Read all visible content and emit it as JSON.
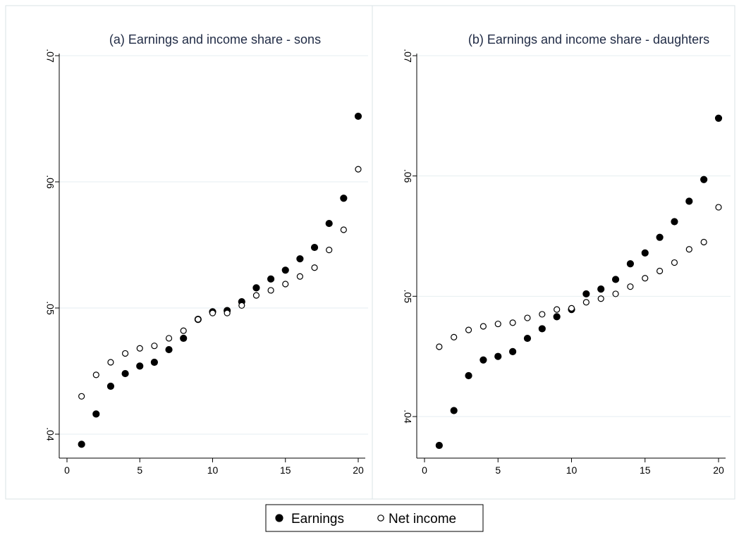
{
  "colors": {
    "title": "#1f2a44",
    "grid": "#e6eef0",
    "panel_border": "#d9e3e6",
    "earnings_fill": "#000000",
    "net_income_stroke": "#000000",
    "net_income_fill": "#ffffff"
  },
  "legend": {
    "position": "bottom-center",
    "items": [
      {
        "label": "Earnings",
        "marker": "filled-circle"
      },
      {
        "label": "Net income",
        "marker": "hollow-circle"
      }
    ]
  },
  "chart_data": [
    {
      "type": "scatter",
      "title": "(a) Earnings and income share - sons",
      "xlabel": "",
      "ylabel": "",
      "xlim": [
        0,
        20
      ],
      "ylim": [
        0.04,
        0.07
      ],
      "xticks": [
        0,
        5,
        10,
        15,
        20
      ],
      "xtick_labels": [
        "0",
        "5",
        "10",
        "15",
        "20"
      ],
      "yticks": [
        0.04,
        0.05,
        0.06,
        0.07
      ],
      "ytick_labels": [
        ".04",
        ".05",
        ".06",
        ".07"
      ],
      "grid": true,
      "series": [
        {
          "name": "Earnings",
          "marker": "filled",
          "x": [
            1,
            2,
            3,
            4,
            5,
            6,
            7,
            8,
            9,
            10,
            11,
            12,
            13,
            14,
            15,
            16,
            17,
            18,
            19,
            20
          ],
          "y": [
            0.0392,
            0.0416,
            0.0438,
            0.0448,
            0.0454,
            0.0457,
            0.0467,
            0.0476,
            0.0491,
            0.0497,
            0.0498,
            0.0505,
            0.0516,
            0.0523,
            0.053,
            0.0539,
            0.0548,
            0.0567,
            0.0587,
            0.0652
          ]
        },
        {
          "name": "Net income",
          "marker": "hollow",
          "x": [
            1,
            2,
            3,
            4,
            5,
            6,
            7,
            8,
            9,
            10,
            11,
            12,
            13,
            14,
            15,
            16,
            17,
            18,
            19,
            20
          ],
          "y": [
            0.043,
            0.0447,
            0.0457,
            0.0464,
            0.0468,
            0.047,
            0.0476,
            0.0482,
            0.0491,
            0.0496,
            0.0496,
            0.0502,
            0.051,
            0.0514,
            0.0519,
            0.0525,
            0.0532,
            0.0546,
            0.0562,
            0.061
          ]
        }
      ]
    },
    {
      "type": "scatter",
      "title": "(b) Earnings and income share - daughters",
      "xlabel": "",
      "ylabel": "",
      "xlim": [
        0,
        20
      ],
      "ylim": [
        0.04,
        0.07
      ],
      "xticks": [
        0,
        5,
        10,
        15,
        20
      ],
      "xtick_labels": [
        "0",
        "5",
        "10",
        "15",
        "20"
      ],
      "yticks": [
        0.04,
        0.05,
        0.06,
        0.07
      ],
      "ytick_labels": [
        ".04",
        ".05",
        ".06",
        ".07"
      ],
      "grid": true,
      "series": [
        {
          "name": "Earnings",
          "marker": "filled",
          "x": [
            1,
            2,
            3,
            4,
            5,
            6,
            7,
            8,
            9,
            10,
            11,
            12,
            13,
            14,
            15,
            16,
            17,
            18,
            19,
            20
          ],
          "y": [
            0.0376,
            0.0405,
            0.0434,
            0.0447,
            0.045,
            0.0454,
            0.0465,
            0.0473,
            0.0483,
            0.0489,
            0.0502,
            0.0506,
            0.0514,
            0.0527,
            0.0536,
            0.0549,
            0.0562,
            0.0579,
            0.0597,
            0.0648
          ]
        },
        {
          "name": "Net income",
          "marker": "hollow",
          "x": [
            1,
            2,
            3,
            4,
            5,
            6,
            7,
            8,
            9,
            10,
            11,
            12,
            13,
            14,
            15,
            16,
            17,
            18,
            19,
            20
          ],
          "y": [
            0.0458,
            0.0466,
            0.0472,
            0.0475,
            0.0477,
            0.0478,
            0.0482,
            0.0485,
            0.0489,
            0.049,
            0.0495,
            0.0498,
            0.0502,
            0.0508,
            0.0515,
            0.0521,
            0.0528,
            0.0539,
            0.0545,
            0.0574
          ]
        }
      ]
    }
  ]
}
